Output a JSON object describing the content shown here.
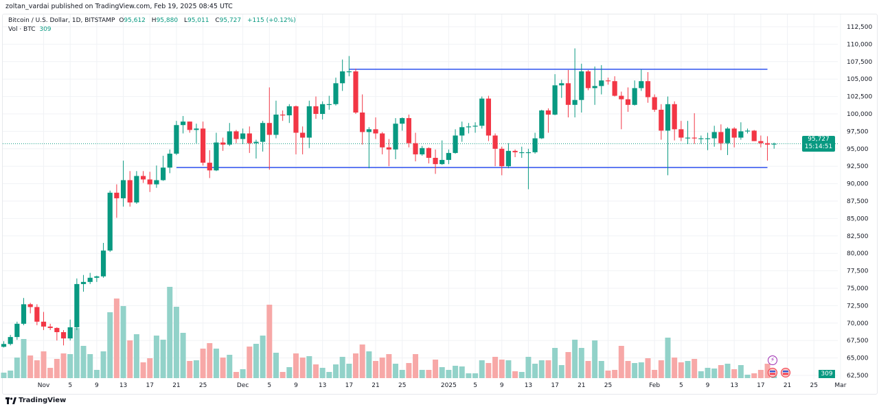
{
  "publisher_line": "zoltan_vardai published on TradingView.com, Feb 19, 2025 08:45 UTC",
  "legend": {
    "symbol": "Bitcoin / U.S. Dollar, 1D, BITSTAMP",
    "o_label": "O",
    "o": "95,612",
    "h_label": "H",
    "h": "95,880",
    "l_label": "L",
    "l": "95,011",
    "c_label": "C",
    "c": "95,727",
    "change": "+115 (+0.12%)",
    "vol_label": "Vol · BTC",
    "vol": "309"
  },
  "last_price": {
    "price": "95,727",
    "countdown": "15:14:51"
  },
  "last_volume": "309",
  "footer_logo": "TradingView",
  "colors": {
    "up": "#089981",
    "down": "#F23645",
    "vol_up": "#92d2c9",
    "vol_down": "#f7a8a7",
    "trendline": "#3d5ef0",
    "price_line": "#089981"
  },
  "icons": [
    "lightning-event-icon",
    "us-flag-event-icon",
    "us-flag-event-icon"
  ],
  "chart_data": {
    "type": "candlestick",
    "title": "",
    "price_axis": {
      "range": [
        61500,
        114000
      ],
      "ticks": [
        "112,500",
        "110,000",
        "107,500",
        "105,000",
        "102,500",
        "100,000",
        "97,500",
        "95,000",
        "92,500",
        "90,000",
        "87,500",
        "85,000",
        "82,500",
        "80,000",
        "77,500",
        "75,000",
        "72,500",
        "70,000",
        "67,500",
        "65,000",
        "62,500"
      ]
    },
    "x_ticks": [
      [
        "Nov",
        "2024-11-01"
      ],
      [
        "5",
        "2024-11-05"
      ],
      [
        "9",
        "2024-11-09"
      ],
      [
        "13",
        "2024-11-13"
      ],
      [
        "17",
        "2024-11-17"
      ],
      [
        "21",
        "2024-11-21"
      ],
      [
        "25",
        "2024-11-25"
      ],
      [
        "Dec",
        "2024-12-01"
      ],
      [
        "5",
        "2024-12-05"
      ],
      [
        "9",
        "2024-12-09"
      ],
      [
        "13",
        "2024-12-13"
      ],
      [
        "17",
        "2024-12-17"
      ],
      [
        "21",
        "2024-12-21"
      ],
      [
        "25",
        "2024-12-25"
      ],
      [
        "2025",
        "2025-01-01"
      ],
      [
        "5",
        "2025-01-05"
      ],
      [
        "9",
        "2025-01-09"
      ],
      [
        "13",
        "2025-01-13"
      ],
      [
        "17",
        "2025-01-17"
      ],
      [
        "21",
        "2025-01-21"
      ],
      [
        "25",
        "2025-01-25"
      ],
      [
        "Feb",
        "2025-02-01"
      ],
      [
        "5",
        "2025-02-05"
      ],
      [
        "9",
        "2025-02-09"
      ],
      [
        "13",
        "2025-02-13"
      ],
      [
        "17",
        "2025-02-17"
      ],
      [
        "21",
        "2025-02-21"
      ],
      [
        "25",
        "2025-02-25"
      ],
      [
        "Mar",
        "2025-03-01"
      ]
    ],
    "grid": true,
    "columns": [
      "date",
      "open",
      "high",
      "low",
      "close",
      "volume"
    ],
    "candles": [
      [
        "2024-10-26",
        66600,
        67400,
        66500,
        67000,
        400
      ],
      [
        "2024-10-27",
        67000,
        68300,
        66800,
        68000,
        550
      ],
      [
        "2024-10-28",
        68000,
        70200,
        67600,
        69900,
        1500
      ],
      [
        "2024-10-29",
        69900,
        73600,
        69700,
        72700,
        2850
      ],
      [
        "2024-10-30",
        72700,
        72900,
        71400,
        72300,
        1650
      ],
      [
        "2024-10-31",
        72300,
        72700,
        69700,
        70200,
        1300
      ],
      [
        "2024-11-01",
        70200,
        71600,
        69000,
        69500,
        1950
      ],
      [
        "2024-11-02",
        69500,
        69900,
        69000,
        69300,
        750
      ],
      [
        "2024-11-03",
        69300,
        69400,
        67500,
        68700,
        1400
      ],
      [
        "2024-11-04",
        68700,
        69000,
        66800,
        67800,
        1800
      ],
      [
        "2024-11-05",
        67800,
        70500,
        67500,
        69400,
        1750
      ],
      [
        "2024-11-06",
        69400,
        76400,
        69000,
        75600,
        3650
      ],
      [
        "2024-11-07",
        75600,
        76900,
        74500,
        75900,
        2350
      ],
      [
        "2024-11-08",
        75900,
        77200,
        75600,
        76500,
        1750
      ],
      [
        "2024-11-09",
        76500,
        76800,
        75900,
        76700,
        600
      ],
      [
        "2024-11-10",
        76700,
        81500,
        76500,
        80400,
        1950
      ],
      [
        "2024-11-11",
        80400,
        89000,
        80200,
        88700,
        4800
      ],
      [
        "2024-11-12",
        88700,
        89900,
        85100,
        87900,
        5800
      ],
      [
        "2024-11-13",
        87900,
        93300,
        86700,
        90500,
        5250
      ],
      [
        "2024-11-14",
        90500,
        91800,
        86700,
        87300,
        2750
      ],
      [
        "2024-11-15",
        87300,
        91800,
        87100,
        91100,
        3200
      ],
      [
        "2024-11-16",
        91100,
        91800,
        90100,
        90600,
        1150
      ],
      [
        "2024-11-17",
        90600,
        91700,
        88800,
        89900,
        1450
      ],
      [
        "2024-11-18",
        89900,
        92600,
        89400,
        90500,
        3100
      ],
      [
        "2024-11-19",
        90500,
        94000,
        90400,
        92300,
        2800
      ],
      [
        "2024-11-20",
        92300,
        94900,
        91500,
        94300,
        6650
      ],
      [
        "2024-11-21",
        94300,
        99000,
        94100,
        98400,
        5200
      ],
      [
        "2024-11-22",
        98400,
        99700,
        97200,
        98900,
        3300
      ],
      [
        "2024-11-23",
        98900,
        98900,
        97300,
        97700,
        1250
      ],
      [
        "2024-11-24",
        97700,
        98600,
        95800,
        97900,
        1300
      ],
      [
        "2024-11-25",
        97900,
        98900,
        92600,
        93000,
        2150
      ],
      [
        "2024-11-26",
        93000,
        94800,
        90800,
        91900,
        2550
      ],
      [
        "2024-11-27",
        91900,
        97300,
        91800,
        95900,
        2150
      ],
      [
        "2024-11-28",
        95900,
        96600,
        94700,
        95600,
        1500
      ],
      [
        "2024-11-29",
        95600,
        98700,
        95400,
        97500,
        1700
      ],
      [
        "2024-11-30",
        97500,
        97700,
        95800,
        96400,
        450
      ],
      [
        "2024-12-01",
        96400,
        97900,
        95700,
        97200,
        650
      ],
      [
        "2024-12-02",
        97200,
        98200,
        94400,
        95800,
        2300
      ],
      [
        "2024-12-03",
        95800,
        96300,
        93600,
        96000,
        2500
      ],
      [
        "2024-12-04",
        96000,
        99000,
        94600,
        98700,
        3100
      ],
      [
        "2024-12-05",
        98700,
        103800,
        92000,
        97000,
        5350
      ],
      [
        "2024-12-06",
        97000,
        101900,
        96500,
        99900,
        1850
      ],
      [
        "2024-12-07",
        99900,
        100500,
        99000,
        99800,
        450
      ],
      [
        "2024-12-08",
        99800,
        101400,
        98700,
        101100,
        800
      ],
      [
        "2024-12-09",
        101100,
        101200,
        94200,
        97300,
        1800
      ],
      [
        "2024-12-10",
        97300,
        98200,
        94200,
        96600,
        1500
      ],
      [
        "2024-12-11",
        96600,
        101900,
        95100,
        101100,
        1600
      ],
      [
        "2024-12-12",
        101100,
        102500,
        99300,
        100000,
        1000
      ],
      [
        "2024-12-13",
        100000,
        101800,
        99200,
        101400,
        750
      ],
      [
        "2024-12-14",
        101400,
        102600,
        100600,
        101400,
        450
      ],
      [
        "2024-12-15",
        101400,
        105200,
        101200,
        104400,
        1000
      ],
      [
        "2024-12-16",
        104400,
        107800,
        103300,
        106100,
        1550
      ],
      [
        "2024-12-17",
        106100,
        108300,
        105400,
        106100,
        1050
      ],
      [
        "2024-12-18",
        106100,
        106500,
        100000,
        100200,
        1800
      ],
      [
        "2024-12-19",
        100200,
        102800,
        95600,
        97400,
        2450
      ],
      [
        "2024-12-20",
        97400,
        98100,
        92200,
        97800,
        1950
      ],
      [
        "2024-12-21",
        97800,
        99500,
        96400,
        97200,
        1250
      ],
      [
        "2024-12-22",
        97200,
        97400,
        94200,
        95200,
        1500
      ],
      [
        "2024-12-23",
        95200,
        96400,
        92500,
        94900,
        1750
      ],
      [
        "2024-12-24",
        94900,
        99400,
        93500,
        98600,
        1050
      ],
      [
        "2024-12-25",
        98600,
        99500,
        97600,
        99400,
        600
      ],
      [
        "2024-12-26",
        99400,
        99900,
        95200,
        95800,
        1100
      ],
      [
        "2024-12-27",
        95800,
        97300,
        93200,
        94200,
        1750
      ],
      [
        "2024-12-28",
        94200,
        95400,
        94000,
        95100,
        600
      ],
      [
        "2024-12-29",
        95100,
        95200,
        92900,
        93700,
        600
      ],
      [
        "2024-12-30",
        93700,
        94900,
        91400,
        92800,
        1350
      ],
      [
        "2024-12-31",
        92800,
        96200,
        92700,
        93400,
        800
      ],
      [
        "2025-01-01",
        93400,
        94900,
        92800,
        94400,
        600
      ],
      [
        "2025-01-02",
        94400,
        97800,
        94300,
        96900,
        900
      ],
      [
        "2025-01-03",
        96900,
        98900,
        96000,
        98100,
        850
      ],
      [
        "2025-01-04",
        98100,
        98700,
        97200,
        98200,
        350
      ],
      [
        "2025-01-05",
        98200,
        98800,
        97300,
        98300,
        350
      ],
      [
        "2025-01-06",
        98300,
        102500,
        97900,
        102200,
        1300
      ],
      [
        "2025-01-07",
        102200,
        102600,
        96100,
        96900,
        1100
      ],
      [
        "2025-01-08",
        96900,
        97200,
        92500,
        95000,
        1550
      ],
      [
        "2025-01-09",
        95000,
        95300,
        91200,
        92500,
        1350
      ],
      [
        "2025-01-10",
        92500,
        95800,
        92200,
        94700,
        1300
      ],
      [
        "2025-01-11",
        94700,
        94900,
        93800,
        94500,
        500
      ],
      [
        "2025-01-12",
        94500,
        95300,
        93700,
        94500,
        450
      ],
      [
        "2025-01-13",
        94500,
        95000,
        89200,
        94500,
        1550
      ],
      [
        "2025-01-14",
        94500,
        97300,
        94300,
        96500,
        1050
      ],
      [
        "2025-01-15",
        96500,
        100600,
        96400,
        100500,
        1300
      ],
      [
        "2025-01-16",
        100500,
        100800,
        97300,
        99900,
        1300
      ],
      [
        "2025-01-17",
        99900,
        105700,
        99800,
        104100,
        2200
      ],
      [
        "2025-01-18",
        104100,
        104900,
        102300,
        104400,
        950
      ],
      [
        "2025-01-19",
        104400,
        106300,
        99500,
        101300,
        1900
      ],
      [
        "2025-01-20",
        101300,
        109400,
        99500,
        102000,
        2800
      ],
      [
        "2025-01-21",
        102000,
        107200,
        100200,
        106100,
        2200
      ],
      [
        "2025-01-22",
        106100,
        106300,
        103400,
        103700,
        1250
      ],
      [
        "2025-01-23",
        103700,
        106800,
        101300,
        104000,
        2750
      ],
      [
        "2025-01-24",
        104000,
        107000,
        102800,
        104800,
        1250
      ],
      [
        "2025-01-25",
        104800,
        105200,
        104200,
        104700,
        550
      ],
      [
        "2025-01-26",
        104700,
        105400,
        102500,
        102600,
        600
      ],
      [
        "2025-01-27",
        102600,
        103200,
        97800,
        102100,
        2350
      ],
      [
        "2025-01-28",
        102100,
        103800,
        100300,
        101300,
        1250
      ],
      [
        "2025-01-29",
        101300,
        104800,
        101200,
        103700,
        1100
      ],
      [
        "2025-01-30",
        103700,
        106400,
        103300,
        104700,
        1150
      ],
      [
        "2025-01-31",
        104700,
        106000,
        101600,
        102400,
        1450
      ],
      [
        "2025-02-01",
        102400,
        102800,
        100300,
        100600,
        600
      ],
      [
        "2025-02-02",
        100600,
        101400,
        96300,
        97600,
        1300
      ],
      [
        "2025-02-03",
        97600,
        102500,
        91200,
        101400,
        2950
      ],
      [
        "2025-02-04",
        101400,
        101800,
        96200,
        97800,
        1500
      ],
      [
        "2025-02-05",
        97800,
        99000,
        96100,
        96600,
        1150
      ],
      [
        "2025-02-06",
        96600,
        99000,
        95700,
        96600,
        1250
      ],
      [
        "2025-02-07",
        96600,
        100100,
        95700,
        96500,
        1400
      ],
      [
        "2025-02-08",
        96500,
        96900,
        95700,
        96500,
        500
      ],
      [
        "2025-02-09",
        96500,
        97300,
        94800,
        96500,
        750
      ],
      [
        "2025-02-10",
        96500,
        98300,
        95300,
        97400,
        700
      ],
      [
        "2025-02-11",
        97400,
        98500,
        94800,
        95800,
        950
      ],
      [
        "2025-02-12",
        95800,
        98100,
        94100,
        97900,
        1050
      ],
      [
        "2025-02-13",
        97900,
        98100,
        95200,
        96600,
        650
      ],
      [
        "2025-02-14",
        96600,
        98800,
        96300,
        97500,
        950
      ],
      [
        "2025-02-15",
        97500,
        97900,
        97200,
        97600,
        250
      ],
      [
        "2025-02-16",
        97600,
        97700,
        96100,
        96100,
        350
      ],
      [
        "2025-02-17",
        96100,
        96900,
        95200,
        95800,
        600
      ],
      [
        "2025-02-18",
        95800,
        96800,
        93300,
        95600,
        1050
      ],
      [
        "2025-02-19",
        95612,
        95880,
        95011,
        95727,
        309
      ]
    ],
    "annotations": [
      {
        "type": "horizontal-trendline",
        "from": "2024-12-17",
        "to": "2025-02-18",
        "price": 106400
      },
      {
        "type": "horizontal-trendline",
        "from": "2024-11-21",
        "to": "2025-02-18",
        "price": 92300
      }
    ]
  }
}
